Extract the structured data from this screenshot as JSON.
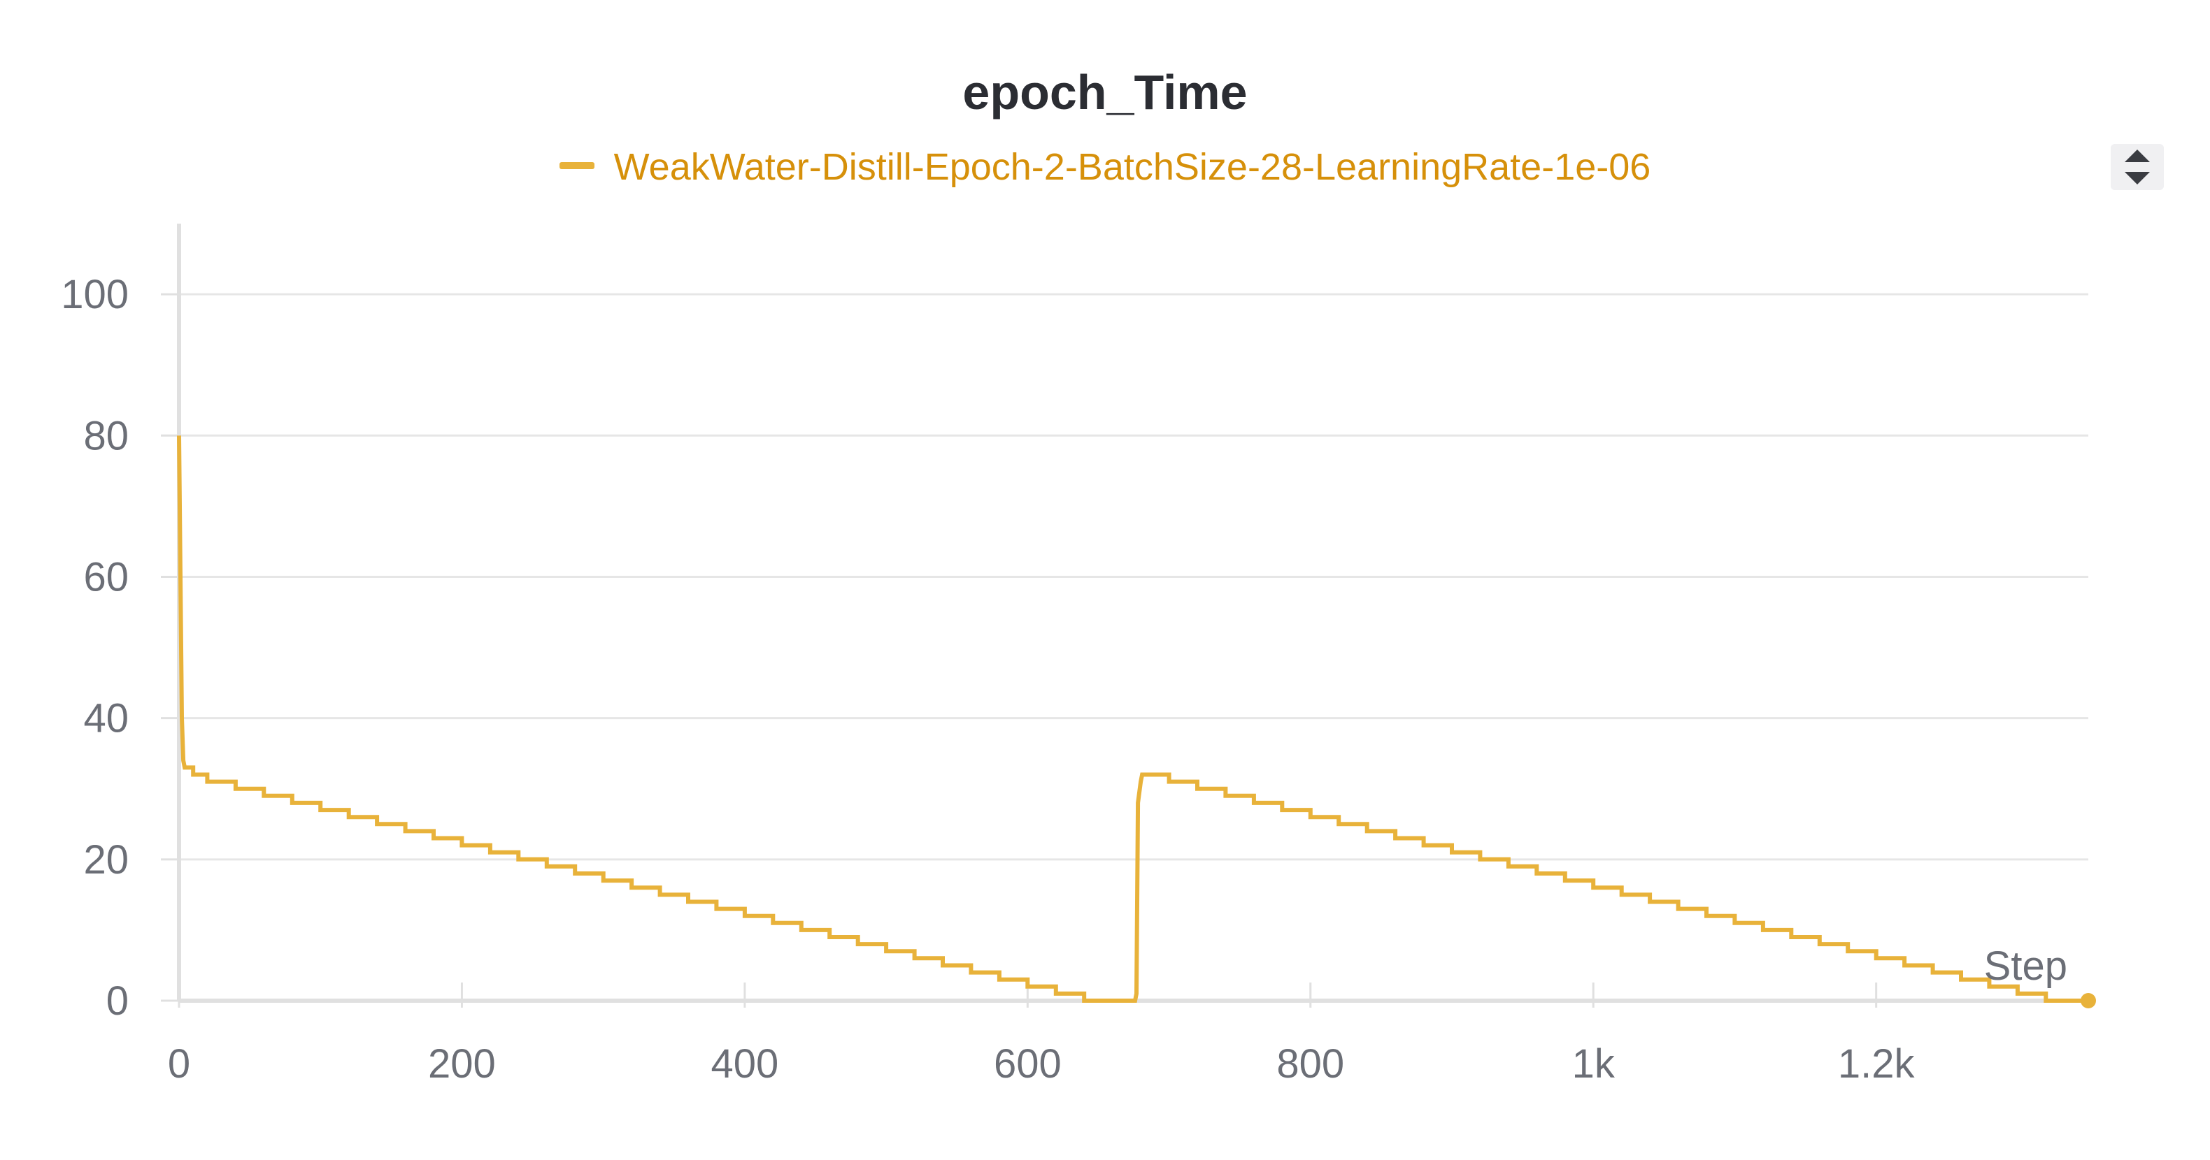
{
  "chart_data": {
    "type": "line",
    "title": "epoch_Time",
    "xlabel": "Step",
    "ylabel": "",
    "xlim": [
      0,
      1350
    ],
    "ylim": [
      0,
      110
    ],
    "x_ticks": [
      0,
      200,
      400,
      600,
      800,
      1000,
      1200
    ],
    "x_tick_labels": [
      "0",
      "200",
      "400",
      "600",
      "800",
      "1k",
      "1.2k"
    ],
    "y_ticks": [
      0,
      20,
      40,
      60,
      80,
      100
    ],
    "y_tick_labels": [
      "0",
      "20",
      "40",
      "60",
      "80",
      "100"
    ],
    "grid": true,
    "legend_position": "top-center",
    "colors": {
      "series_line": "#e8b23a",
      "legend_text": "#d6900a",
      "grid": "#e6e6e6",
      "axis": "#e0e0e0",
      "tick_text": "#6b6e76",
      "title_text": "#2b2d33"
    },
    "series": [
      {
        "name": "WeakWater-Distill-Epoch-2-BatchSize-28-LearningRate-1e-06",
        "points": [
          [
            0,
            80
          ],
          [
            1,
            60
          ],
          [
            2,
            40
          ],
          [
            3,
            34
          ],
          [
            4,
            33
          ],
          [
            10,
            33
          ],
          [
            10,
            32
          ],
          [
            20,
            32
          ],
          [
            20,
            31
          ],
          [
            40,
            31
          ],
          [
            40,
            30
          ],
          [
            60,
            30
          ],
          [
            60,
            29
          ],
          [
            80,
            29
          ],
          [
            80,
            28
          ],
          [
            100,
            28
          ],
          [
            100,
            27
          ],
          [
            120,
            27
          ],
          [
            120,
            26
          ],
          [
            140,
            26
          ],
          [
            140,
            25
          ],
          [
            160,
            25
          ],
          [
            160,
            24
          ],
          [
            180,
            24
          ],
          [
            180,
            23
          ],
          [
            200,
            23
          ],
          [
            200,
            22
          ],
          [
            220,
            22
          ],
          [
            220,
            21
          ],
          [
            240,
            21
          ],
          [
            240,
            20
          ],
          [
            260,
            20
          ],
          [
            260,
            19
          ],
          [
            280,
            19
          ],
          [
            280,
            18
          ],
          [
            300,
            18
          ],
          [
            300,
            17
          ],
          [
            320,
            17
          ],
          [
            320,
            16
          ],
          [
            340,
            16
          ],
          [
            340,
            15
          ],
          [
            360,
            15
          ],
          [
            360,
            14
          ],
          [
            380,
            14
          ],
          [
            380,
            13
          ],
          [
            400,
            13
          ],
          [
            400,
            12
          ],
          [
            420,
            12
          ],
          [
            420,
            11
          ],
          [
            440,
            11
          ],
          [
            440,
            10
          ],
          [
            460,
            10
          ],
          [
            460,
            9
          ],
          [
            480,
            9
          ],
          [
            480,
            8
          ],
          [
            500,
            8
          ],
          [
            500,
            7
          ],
          [
            520,
            7
          ],
          [
            520,
            6
          ],
          [
            540,
            6
          ],
          [
            540,
            5
          ],
          [
            560,
            5
          ],
          [
            560,
            4
          ],
          [
            580,
            4
          ],
          [
            580,
            3
          ],
          [
            600,
            3
          ],
          [
            600,
            2
          ],
          [
            620,
            2
          ],
          [
            620,
            1
          ],
          [
            640,
            1
          ],
          [
            640,
            0
          ],
          [
            676,
            0
          ],
          [
            677,
            1
          ],
          [
            678,
            28
          ],
          [
            680,
            31
          ],
          [
            681,
            32
          ],
          [
            700,
            32
          ],
          [
            700,
            31
          ],
          [
            720,
            31
          ],
          [
            720,
            30
          ],
          [
            740,
            30
          ],
          [
            740,
            29
          ],
          [
            760,
            29
          ],
          [
            760,
            28
          ],
          [
            780,
            28
          ],
          [
            780,
            27
          ],
          [
            800,
            27
          ],
          [
            800,
            26
          ],
          [
            820,
            26
          ],
          [
            820,
            25
          ],
          [
            840,
            25
          ],
          [
            840,
            24
          ],
          [
            860,
            24
          ],
          [
            860,
            23
          ],
          [
            880,
            23
          ],
          [
            880,
            22
          ],
          [
            900,
            22
          ],
          [
            900,
            21
          ],
          [
            920,
            21
          ],
          [
            920,
            20
          ],
          [
            940,
            20
          ],
          [
            940,
            19
          ],
          [
            960,
            19
          ],
          [
            960,
            18
          ],
          [
            980,
            18
          ],
          [
            980,
            17
          ],
          [
            1000,
            17
          ],
          [
            1000,
            16
          ],
          [
            1020,
            16
          ],
          [
            1020,
            15
          ],
          [
            1040,
            15
          ],
          [
            1040,
            14
          ],
          [
            1060,
            14
          ],
          [
            1060,
            13
          ],
          [
            1080,
            13
          ],
          [
            1080,
            12
          ],
          [
            1100,
            12
          ],
          [
            1100,
            11
          ],
          [
            1120,
            11
          ],
          [
            1120,
            10
          ],
          [
            1140,
            10
          ],
          [
            1140,
            9
          ],
          [
            1160,
            9
          ],
          [
            1160,
            8
          ],
          [
            1180,
            8
          ],
          [
            1180,
            7
          ],
          [
            1200,
            7
          ],
          [
            1200,
            6
          ],
          [
            1220,
            6
          ],
          [
            1220,
            5
          ],
          [
            1240,
            5
          ],
          [
            1240,
            4
          ],
          [
            1260,
            4
          ],
          [
            1260,
            3
          ],
          [
            1280,
            3
          ],
          [
            1280,
            2
          ],
          [
            1300,
            2
          ],
          [
            1300,
            1
          ],
          [
            1320,
            1
          ],
          [
            1320,
            0
          ],
          [
            1350,
            0
          ]
        ]
      }
    ]
  }
}
